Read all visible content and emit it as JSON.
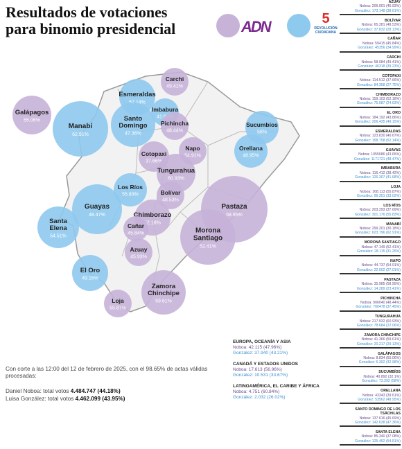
{
  "title": {
    "line1": "Resultados de votaciones",
    "line2": "para binomio presidencial"
  },
  "colors": {
    "noboa": "#c7b3d8",
    "gonzalez": "#8ec9ee",
    "noboa_text": "#6a4c8c",
    "gonzalez_text": "#3a8fcf"
  },
  "logos": {
    "adn": "ADN",
    "rc_mark": "5",
    "rc_text": "REVOLUCIÓN CIUDADANA"
  },
  "map_provinces": [
    {
      "name": "Carchi",
      "pct": "49.41%",
      "winner": "noboa"
    },
    {
      "name": "Esmeraldas",
      "pct": "52.14%",
      "winner": "gonzalez"
    },
    {
      "name": "Imbabura",
      "pct": "41.68%",
      "winner": "gonzalez"
    },
    {
      "name": "Galápagos",
      "pct": "55.06%",
      "winner": "noboa"
    },
    {
      "name": "Santo Domingo",
      "pct": "47.36%",
      "winner": "gonzalez"
    },
    {
      "name": "Pichincha",
      "pct": "48.44%",
      "winner": "noboa"
    },
    {
      "name": "Sucumbíos",
      "pct": "58%",
      "winner": "gonzalez"
    },
    {
      "name": "Manabí",
      "pct": "62.91%",
      "winner": "gonzalez"
    },
    {
      "name": "Napo",
      "pct": "54.91%",
      "winner": "noboa"
    },
    {
      "name": "Cotopaxi",
      "pct": "37.66%",
      "winner": "noboa"
    },
    {
      "name": "Orellana",
      "pct": "48.95%",
      "winner": "gonzalez"
    },
    {
      "name": "Tungurahua",
      "pct": "60.93%",
      "winner": "noboa"
    },
    {
      "name": "Los Ríos",
      "pct": "55.83%",
      "winner": "gonzalez"
    },
    {
      "name": "Bolívar",
      "pct": "48.53%",
      "winner": "noboa"
    },
    {
      "name": "Guayas",
      "pct": "48.47%",
      "winner": "gonzalez"
    },
    {
      "name": "Pastaza",
      "pct": "58.95%",
      "winner": "noboa"
    },
    {
      "name": "Chimborazo",
      "pct": "52.18%",
      "winner": "noboa"
    },
    {
      "name": "Santa Elena",
      "pct": "54.51%",
      "winner": "gonzalez"
    },
    {
      "name": "Cañar",
      "pct": "45.84%",
      "winner": "noboa"
    },
    {
      "name": "Morona Santiago",
      "pct": "52.41%",
      "winner": "noboa"
    },
    {
      "name": "Azuay",
      "pct": "45.93%",
      "winner": "noboa"
    },
    {
      "name": "El Oro",
      "pct": "49.15%",
      "winner": "gonzalez"
    },
    {
      "name": "Zamora Chinchipe",
      "pct": "59.61%",
      "winner": "noboa"
    },
    {
      "name": "Loja",
      "pct": "55.87%",
      "winner": "noboa"
    }
  ],
  "sidebar": [
    {
      "name": "AZUAY",
      "a": "Noboa: 206.001 (45.93%)",
      "b": "González: 173.148 (38.61%)"
    },
    {
      "name": "BOLÍVAR",
      "a": "Noboa: 65.281 (48.53%)",
      "b": "González: 37.832 (28.13%)"
    },
    {
      "name": "CAÑAR",
      "a": "Noboa: 59415 (45.84%)",
      "b": "González: 45356 (34.99%)"
    },
    {
      "name": "CARCHI",
      "a": "Noboa: 58.084 (49.41%)",
      "b": "González: 46318 (39.23%)"
    },
    {
      "name": "COTOPAXI",
      "a": "Noboa: 114.512 (37.66%)",
      "b": "González: 84.358 (27.75%)"
    },
    {
      "name": "CHIMBORAZO",
      "a": "Noboa: 159.103 (52.18%)",
      "b": "González: 75.087 (24.63%)"
    },
    {
      "name": "EL ORO",
      "a": "Noboa: 184.192 (43.86%)",
      "b": "González: 206.435 (49.15%)"
    },
    {
      "name": "ESMERALDAS",
      "a": "Noboa: 123.830 (40.67%)",
      "b": "González: 158.758 (52.14%)"
    },
    {
      "name": "GUAYAS",
      "a": "Noboa: 1055086 (43.65%)",
      "b": "González: 1171721 (48.47%)"
    },
    {
      "name": "IMBABURA",
      "a": "Noboa: 116.412 (38.42%)",
      "b": "González: 126.307 (41.68%)"
    },
    {
      "name": "LOJA",
      "a": "Noboa: 168.113 (55.87%)",
      "b": "González: 99.351 (33.02%)"
    },
    {
      "name": "LOS RÍOS",
      "a": "Noboa: 203.293 (37.69%)",
      "b": "González: 301.176 (55.83%)"
    },
    {
      "name": "MANABÍ",
      "a": "Noboa: 299.201 (30.18%)",
      "b": "González: 623.796 (62.91%)"
    },
    {
      "name": "MORONA SANTIAGO",
      "a": "Noboa: 47.149 (52.41%)",
      "b": "González: 28.115 (31.25%)"
    },
    {
      "name": "NAPO",
      "a": "Noboa: 44.737 (54.91%)",
      "b": "González: 22.002 (27.01%)"
    },
    {
      "name": "PASTAZA",
      "a": "Noboa: 35.985 (58.95%)",
      "b": "González: 14.289 (23.41%)"
    },
    {
      "name": "PICHINCHA",
      "a": "Noboa: 906040 (48.44%)",
      "b": "González: 700478 (37.45%)"
    },
    {
      "name": "TUNGURAHUA",
      "a": "Noboa: 217.932 (60.93%)",
      "b": "González: 78.684 (22.06%)"
    },
    {
      "name": "ZAMORA CHINCHIPE",
      "a": "Noboa: 41.366 (59.61%)",
      "b": "González: 20.217 (29.13%)"
    },
    {
      "name": "GALÁPAGOS",
      "a": "Noboa: 8.834 (55.06%)",
      "b": "González: 5.392 (32.98%)"
    },
    {
      "name": "SUCUMBÍOS",
      "a": "Noboa: 40.892 (32.1%)",
      "b": "González: 73.392 (58%)"
    },
    {
      "name": "ORELLANA",
      "a": "Noboa: 43343 (39.61%)",
      "b": "González: 53562 (48.95%)"
    },
    {
      "name": "SANTO DOMINGO DE LOS TSÁCHILAS",
      "a": "Noboa: 137.616 (45.69%)",
      "b": "González: 142.638 (47.36%)"
    },
    {
      "name": "SANTA ELENA",
      "a": "Noboa: 85.340 (37.08%)",
      "b": "González: 125.452 (54.51%)"
    }
  ],
  "international": [
    {
      "name": "EUROPA, OCEANÍA Y ASIA",
      "a": "Noboa: 42.115 (47.96%)",
      "b": "González: 37.940 (43.21%)"
    },
    {
      "name": "CANADÁ Y ESTADOS UNIDOS",
      "a": "Noboa: 17.613 (56.96%)",
      "b": "González: 10.531 (33.67%)"
    },
    {
      "name": "LATINOAMÉRICA, EL CARIBE Y ÁFRICA",
      "a": "Noboa: 4.751 (60.84%)",
      "b": "González: 2.032 (26.02%)"
    }
  ],
  "footer": {
    "cutoff": "Con corte a las 12:00 del 12 de febrero de 2025, con el 98.65% de actas válidas procesadas:",
    "noboa_label": "Daniel Noboa: total votos",
    "noboa_total": "4.484.747 (44.18%)",
    "gonzalez_label": "Luisa González: total votos",
    "gonzalez_total": "4.462.099 (43.95%)"
  }
}
